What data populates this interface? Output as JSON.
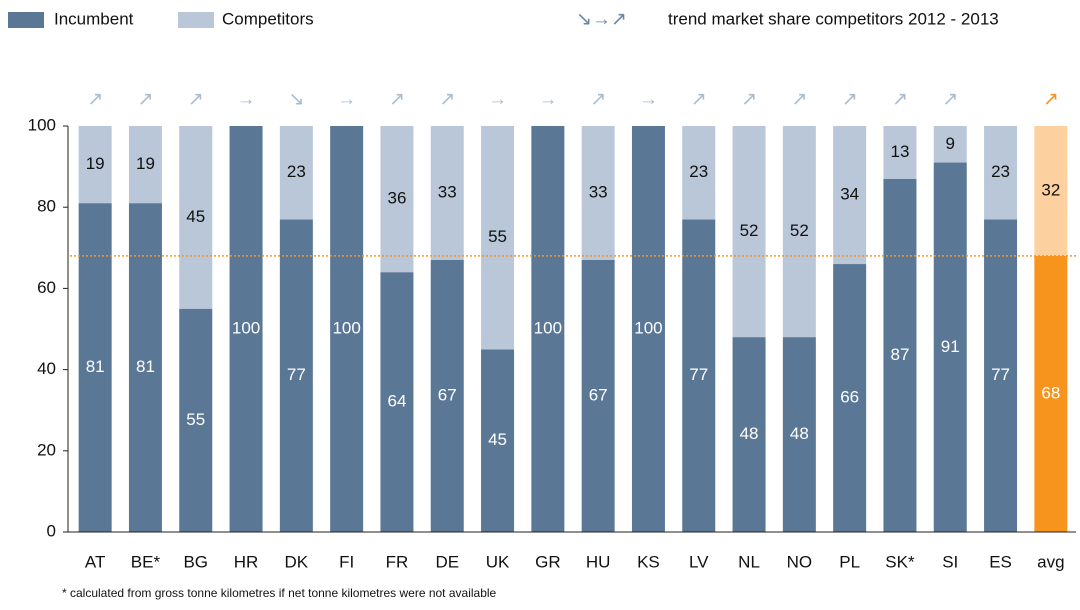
{
  "chart_data": {
    "type": "stacked_bar",
    "categories": [
      "AT",
      "BE*",
      "BG",
      "HR",
      "DK",
      "FI",
      "FR",
      "DE",
      "UK",
      "GR",
      "HU",
      "KS",
      "LV",
      "NL",
      "NO",
      "PL",
      "SK*",
      "SI",
      "ES",
      "avg"
    ],
    "series": [
      {
        "name": "Incumbent",
        "color": "#5b7796",
        "highlight_color": "#f7941d",
        "label_color": "#ffffff",
        "values": [
          81,
          81,
          55,
          100,
          77,
          100,
          64,
          67,
          45,
          100,
          67,
          100,
          77,
          48,
          48,
          66,
          87,
          91,
          77,
          68
        ]
      },
      {
        "name": "Competitors",
        "color": "#b9c7d8",
        "highlight_color": "#fcd09f",
        "label_color": "#111111",
        "values": [
          19,
          19,
          45,
          null,
          23,
          null,
          36,
          33,
          55,
          null,
          33,
          null,
          23,
          52,
          52,
          34,
          13,
          9,
          23,
          32
        ]
      }
    ],
    "highlight_category": "avg",
    "trend_legend_symbols": "↘→↗",
    "trend_legend_text": "trend market share competitors 2012 - 2013",
    "trends": [
      "↗",
      "↗",
      "↗",
      "→",
      "↘",
      "→",
      "↗",
      "↗",
      "→",
      "→",
      "↗",
      "→",
      "↗",
      "↗",
      "↗",
      "↗",
      "↗",
      "↗",
      null,
      "↗"
    ],
    "trend_color": "#a9bccf",
    "reference_line_color": "#f7941d",
    "ylim": [
      0,
      100
    ],
    "yticks": [
      0,
      20,
      40,
      60,
      80,
      100
    ],
    "footnote": "* calculated from gross tonne kilometres if net tonne kilometres were not available"
  }
}
